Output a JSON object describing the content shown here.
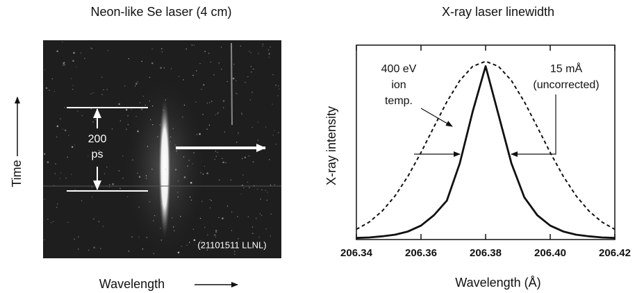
{
  "image_panel": {
    "title": "Neon-like Se laser (4 cm)",
    "y_label": "Time",
    "x_label": "Wavelength",
    "duration_label": [
      "200",
      "ps"
    ],
    "credit": "(21101511 LLNL)"
  },
  "chart_data": {
    "type": "line",
    "title": "X-ray laser linewidth",
    "x_label": "Wavelength (Å)",
    "y_label": "X-ray intensity",
    "x": [
      206.34,
      206.344,
      206.348,
      206.352,
      206.356,
      206.36,
      206.364,
      206.368,
      206.372,
      206.376,
      206.38,
      206.384,
      206.388,
      206.392,
      206.396,
      206.4,
      206.404,
      206.408,
      206.412,
      206.416,
      206.42
    ],
    "series": [
      {
        "color": "#111111",
        "style": "solid",
        "values": [
          0.01,
          0.013,
          0.02,
          0.03,
          0.05,
          0.086,
          0.15,
          0.24,
          0.47,
          0.79,
          1.07,
          0.77,
          0.47,
          0.26,
          0.15,
          0.086,
          0.05,
          0.03,
          0.02,
          0.013,
          0.01
        ]
      },
      {
        "color": "#111111",
        "style": "dashed",
        "values": [
          0.063,
          0.108,
          0.176,
          0.27,
          0.392,
          0.537,
          0.695,
          0.85,
          0.981,
          1.069,
          1.1,
          1.069,
          0.981,
          0.85,
          0.695,
          0.537,
          0.392,
          0.27,
          0.176,
          0.108,
          0.063
        ]
      }
    ],
    "xlim": [
      206.34,
      206.42
    ],
    "ylim": [
      0,
      1.2
    ],
    "xticks": [
      206.34,
      206.36,
      206.38,
      {
        "value": 206.4,
        "label": "206.40"
      },
      206.42
    ],
    "annotations": [
      "400 eV",
      "ion",
      "temp.",
      "15 mÅ",
      "(uncorrected)"
    ]
  }
}
